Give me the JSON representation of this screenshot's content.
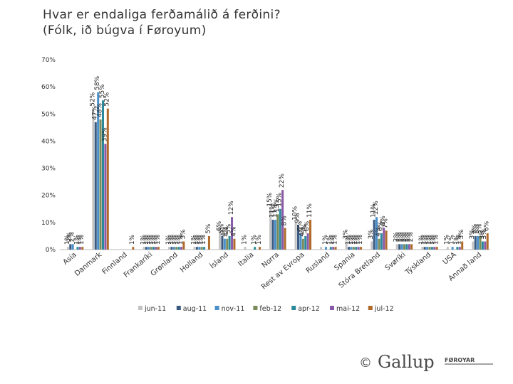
{
  "title_line1": "Hvar er endaliga ferðamálið á ferðini?",
  "title_line2": "(Fólk, ið búgva í Føroyum)",
  "brand": {
    "copyright": "©",
    "name": "Gallup",
    "suffix": "FØROYAR",
    "color": "#4a4a4a"
  },
  "chart_data": {
    "type": "bar",
    "title": "Hvar er endaliga ferðamálið á ferðini? (Fólk, ið búgva í Føroyum)",
    "xlabel": "",
    "ylabel": "",
    "ylim": [
      0,
      70
    ],
    "yticks": [
      "0%",
      "10%",
      "20%",
      "30%",
      "40%",
      "50%",
      "60%",
      "70%"
    ],
    "grid": false,
    "legend_position": "bottom",
    "categories": [
      "Asia",
      "Danmark",
      "Finnland",
      "Frankaríki",
      "Grønland",
      "Holland",
      "Ísland",
      "Italia",
      "Norra",
      "Rest av Evropa",
      "Rusland",
      "Spania",
      "Stóra Bretland",
      "Svøríki",
      "Týskland",
      "USA",
      "Annað land"
    ],
    "series": [
      {
        "name": "jun-11",
        "color": "#c3c3c3",
        "values": [
          1,
          52,
          null,
          1,
          1,
          1,
          6,
          1,
          15,
          10,
          1,
          3,
          3,
          2,
          1,
          1,
          3
        ],
        "labels": [
          "1%",
          "52%",
          "",
          "1%",
          "1%",
          "1%",
          "6%",
          "1%",
          "15%",
          "10%",
          "",
          "3%",
          "3%",
          "2%",
          "1%",
          "1%",
          "3%"
        ]
      },
      {
        "name": "aug-11",
        "color": "#3a5a82",
        "values": [
          2,
          47,
          null,
          1,
          1,
          1,
          5,
          null,
          11,
          9,
          null,
          1,
          11,
          2,
          1,
          null,
          5
        ],
        "labels": [
          "2%",
          "47%",
          "",
          "1%",
          "1%",
          "1%",
          "5%",
          "",
          "11%",
          "9%",
          "",
          "1%",
          "11%",
          "2%",
          "1%",
          "",
          "5%"
        ]
      },
      {
        "name": "nov-11",
        "color": "#4a8fc9",
        "values": [
          2,
          58,
          null,
          1,
          1,
          1,
          4,
          null,
          11,
          6,
          1,
          1,
          12,
          2,
          1,
          1,
          5
        ],
        "labels": [
          "2%",
          "58%",
          "",
          "1%",
          "1%",
          "1%",
          "4%",
          "",
          "11%",
          "6%",
          "1%",
          "1%",
          "12%",
          "2%",
          "1%",
          "1%",
          "5%"
        ]
      },
      {
        "name": "feb-12",
        "color": "#7a8b5a",
        "values": [
          null,
          48,
          null,
          1,
          1,
          1,
          4,
          null,
          13,
          4,
          null,
          1,
          4,
          2,
          1,
          null,
          5
        ],
        "labels": [
          "",
          "48%",
          "",
          "1%",
          "1%",
          "1%",
          "4%",
          "",
          "13%",
          "4%",
          "",
          "1%",
          "4%",
          "2%",
          "1%",
          "",
          "5%"
        ]
      },
      {
        "name": "apr-12",
        "color": "#2a8a9a",
        "values": [
          1,
          55,
          null,
          1,
          1,
          1,
          5,
          1,
          15,
          5,
          1,
          1,
          6,
          2,
          1,
          1,
          3
        ],
        "labels": [
          "1%",
          "55%",
          "",
          "1%",
          "1%",
          "1%",
          "5%",
          "1%",
          "15%",
          "5%",
          "1%",
          "1%",
          "6%",
          "2%",
          "1%",
          "1%",
          "3%"
        ]
      },
      {
        "name": "mai-12",
        "color": "#8a5aa8",
        "values": [
          1,
          39,
          null,
          1,
          1,
          null,
          12,
          null,
          22,
          6,
          1,
          1,
          8,
          2,
          1,
          1,
          3
        ],
        "labels": [
          "1%",
          "39%",
          "",
          "1%",
          "1%",
          "",
          "12%",
          "",
          "22%",
          "6%",
          "1%",
          "1%",
          "8%",
          "2%",
          "1%",
          "1%",
          "3%"
        ]
      },
      {
        "name": "jul-12",
        "color": "#b06a2a",
        "values": [
          1,
          52,
          1,
          1,
          3,
          5,
          4,
          1,
          8,
          11,
          1,
          1,
          7,
          2,
          1,
          3,
          6
        ],
        "labels": [
          "1%",
          "52%",
          "1%",
          "1%",
          "3%",
          "5%",
          "4%",
          "1%",
          "8%",
          "11%",
          "1%",
          "1%",
          "7%",
          "2%",
          "1%",
          "3%",
          "6%"
        ]
      }
    ]
  }
}
